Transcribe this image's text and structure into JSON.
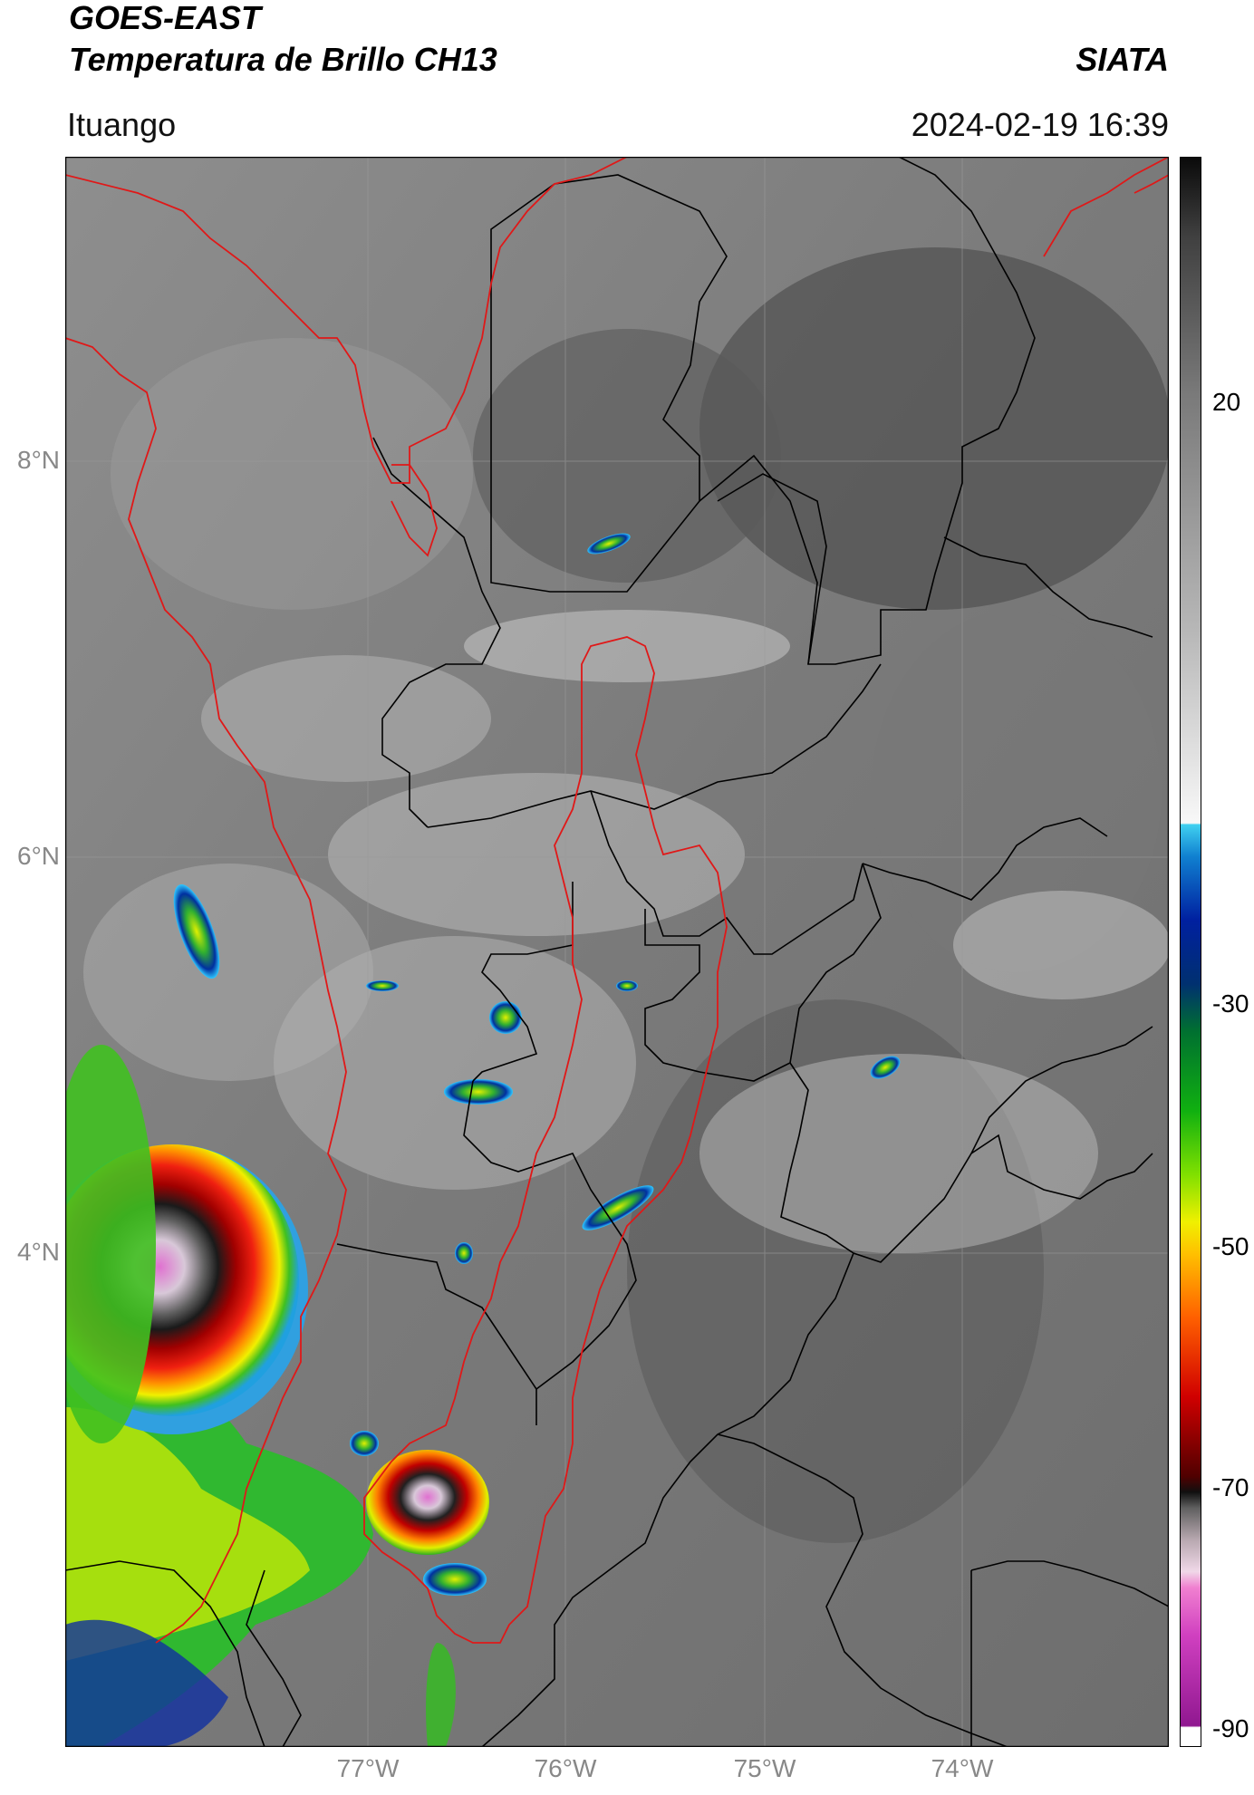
{
  "header": {
    "satellite": "GOES-EAST",
    "product": "Temperatura de Brillo CH13",
    "org": "SIATA",
    "location": "Ituango",
    "datetime": "2024-02-19 16:39"
  },
  "map": {
    "lat_labels": [
      "8°N",
      "6°N",
      "4°N"
    ],
    "lon_labels": [
      "77°W",
      "76°W",
      "75°W",
      "74°W"
    ],
    "boundary_colors": {
      "watershed": "#e01818",
      "departments": "#000000"
    }
  },
  "colorbar": {
    "ticks": [
      "20",
      "-30",
      "-50",
      "-70",
      "-90"
    ],
    "colors": [
      "#ffffff",
      "#a020a0",
      "#e060c0",
      "#f0c8e0",
      "#707070",
      "#101010",
      "#8b0000",
      "#e01010",
      "#ff8000",
      "#ffe000",
      "#90e000",
      "#10a010",
      "#004080",
      "#0010a0",
      "#20c0ff",
      "#e8e8e8",
      "#909090",
      "#101010"
    ]
  }
}
